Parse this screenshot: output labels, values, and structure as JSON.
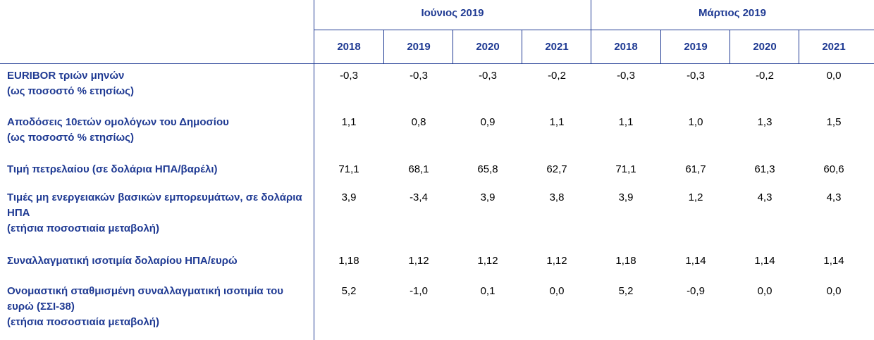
{
  "groups": [
    {
      "label": "Ιούνιος 2019",
      "years": [
        "2018",
        "2019",
        "2020",
        "2021"
      ]
    },
    {
      "label": "Μάρτιος 2019",
      "years": [
        "2018",
        "2019",
        "2020",
        "2021"
      ]
    }
  ],
  "rows": [
    {
      "label": "EURIBOR τριών μηνών",
      "sub": "(ως ποσοστό % ετησίως)",
      "values": [
        "-0,3",
        "-0,3",
        "-0,3",
        "-0,2",
        "-0,3",
        "-0,3",
        "-0,2",
        "0,0"
      ]
    },
    {
      "label": "Αποδόσεις 10ετών ομολόγων του Δημοσίου",
      "sub": "(ως ποσοστό % ετησίως)",
      "values": [
        "1,1",
        "0,8",
        "0,9",
        "1,1",
        "1,1",
        "1,0",
        "1,3",
        "1,5"
      ]
    },
    {
      "label": "Τιμή πετρελαίου (σε δολάρια ΗΠΑ/βαρέλι)",
      "sub": "",
      "values": [
        "71,1",
        "68,1",
        "65,8",
        "62,7",
        "71,1",
        "61,7",
        "61,3",
        "60,6"
      ]
    },
    {
      "label": "Τιμές μη ενεργειακών βασικών εμπορευμάτων, σε δολάρια ΗΠΑ",
      "sub": "(ετήσια ποσοστιαία μεταβολή)",
      "values": [
        "3,9",
        "-3,4",
        "3,9",
        "3,8",
        "3,9",
        "1,2",
        "4,3",
        "4,3"
      ]
    },
    {
      "label": "Συναλλαγματική ισοτιμία δολαρίου ΗΠΑ/ευρώ",
      "sub": "",
      "values": [
        "1,18",
        "1,12",
        "1,12",
        "1,12",
        "1,18",
        "1,14",
        "1,14",
        "1,14"
      ]
    },
    {
      "label": "Ονομαστική σταθμισμένη συναλλαγματική ισοτιμία του ευρώ (ΣΣΙ-38)",
      "sub": "(ετήσια ποσοστιαία μεταβολή)",
      "values": [
        "5,2",
        "-1,0",
        "0,1",
        "0,0",
        "5,2",
        "-0,9",
        "0,0",
        "0,0"
      ]
    }
  ]
}
